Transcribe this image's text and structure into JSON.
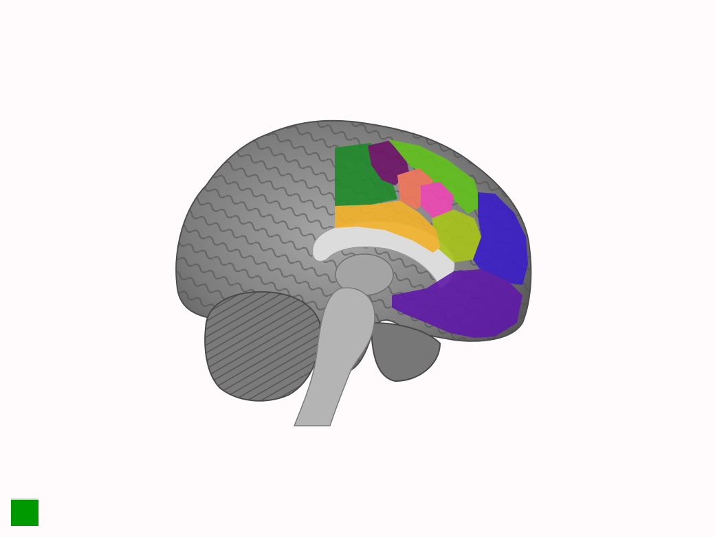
{
  "viewer": {
    "background": "#fffbfc",
    "status_indicator_color": "#009a00",
    "brain_base_color": "#8a8a8a",
    "regions": [
      {
        "name": "green-region",
        "color": "#1f8a2a"
      },
      {
        "name": "dark-magenta-region",
        "color": "#6e1468"
      },
      {
        "name": "lime-region",
        "color": "#62c21c"
      },
      {
        "name": "salmon-region",
        "color": "#f0775a"
      },
      {
        "name": "pink-region",
        "color": "#ee48b4"
      },
      {
        "name": "yellow-green-region",
        "color": "#a9c41a"
      },
      {
        "name": "orange-region",
        "color": "#f2b12a"
      },
      {
        "name": "blue-region",
        "color": "#3b1ec8"
      },
      {
        "name": "purple-region",
        "color": "#5f1aa8"
      }
    ]
  }
}
